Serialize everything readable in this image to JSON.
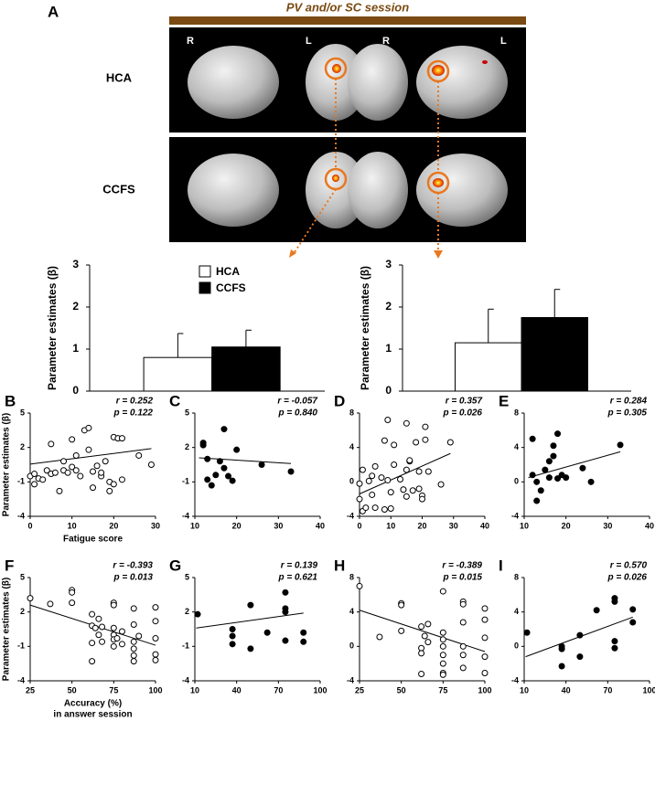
{
  "figure": {
    "panel_label": "A",
    "session_title": "PV and/or SC session",
    "rows": [
      "HCA",
      "CCFS"
    ],
    "hemispheres": [
      "R",
      "L",
      "R",
      "L"
    ]
  },
  "chart_data": [
    {
      "type": "bar",
      "ylabel": "Parameter estimates (β)",
      "ylim": [
        0,
        3
      ],
      "yticks": [
        0,
        1,
        2,
        3
      ],
      "legend": true,
      "series": [
        {
          "name": "HCA",
          "color": "#ffffff",
          "values": [
            0.8
          ],
          "errors": [
            0.57
          ]
        },
        {
          "name": "CCFS",
          "color": "#000000",
          "values": [
            1.05
          ],
          "errors": [
            0.4
          ]
        }
      ]
    },
    {
      "type": "bar",
      "ylabel": "Parameter estimates (β)",
      "ylim": [
        0,
        3
      ],
      "yticks": [
        0,
        1,
        2,
        3
      ],
      "legend": false,
      "series": [
        {
          "name": "HCA",
          "color": "#ffffff",
          "values": [
            1.15
          ],
          "errors": [
            0.8
          ]
        },
        {
          "name": "CCFS",
          "color": "#000000",
          "values": [
            1.75
          ],
          "errors": [
            0.67
          ]
        }
      ]
    },
    {
      "type": "scatter",
      "label": "B",
      "r_text": "r = 0.252",
      "p_text": "p = 0.122",
      "ylabel": "Parameter estimates (β)",
      "xlabel": [
        "Fatigue score"
      ],
      "marker": "open",
      "xlim": [
        0,
        30
      ],
      "xticks": [
        0,
        10,
        20,
        30
      ],
      "ylim": [
        -4,
        5
      ],
      "yticks": [
        -4,
        -1,
        2,
        5
      ],
      "x": [
        0,
        1,
        1,
        2,
        3,
        4,
        5,
        5,
        6,
        7,
        8,
        8,
        9,
        10,
        10,
        11,
        11,
        12,
        13,
        14,
        14,
        15,
        15,
        16,
        17,
        17,
        18,
        19,
        19,
        20,
        20,
        21,
        22,
        22,
        26,
        29
      ],
      "values": [
        -0.5,
        -1.2,
        -0.3,
        -0.7,
        -0.8,
        0,
        -0.3,
        2.3,
        -0.2,
        -1.8,
        0.8,
        0,
        -0.2,
        2.7,
        0.3,
        1.3,
        0,
        -0.5,
        3.5,
        3.7,
        1.8,
        -0.1,
        -1.5,
        0.4,
        -0.5,
        -0.2,
        0.8,
        -1,
        -1.8,
        -1.2,
        2.9,
        2.8,
        2.8,
        -0.8,
        1.3,
        0.5
      ],
      "trend_line": {
        "x": [
          0,
          29
        ],
        "y": [
          0.55,
          1.9
        ]
      }
    },
    {
      "type": "scatter",
      "label": "C",
      "r_text": "r = -0.057",
      "p_text": "p = 0.840",
      "marker": "filled",
      "xlim": [
        10,
        40
      ],
      "xticks": [
        10,
        20,
        30,
        40
      ],
      "ylim": [
        -4,
        5
      ],
      "yticks": [
        -4,
        -1,
        2,
        5
      ],
      "x": [
        12,
        12,
        13,
        13,
        14,
        15,
        16,
        17,
        17,
        18,
        19,
        20,
        26,
        33
      ],
      "values": [
        2.4,
        2.2,
        1.0,
        -0.8,
        -1.3,
        -0.4,
        0.8,
        3.6,
        0.2,
        -0.5,
        -0.9,
        1.8,
        0.5,
        -0.1
      ],
      "trend_line": {
        "x": [
          11,
          33
        ],
        "y": [
          1.1,
          0.6
        ]
      }
    },
    {
      "type": "scatter",
      "label": "D",
      "r_text": "r = 0.357",
      "p_text": "p = 0.026",
      "marker": "open",
      "xlim": [
        0,
        40
      ],
      "xticks": [
        0,
        10,
        20,
        30,
        40
      ],
      "ylim": [
        -4,
        8
      ],
      "yticks": [
        -4,
        0,
        4,
        8
      ],
      "x": [
        0,
        0,
        1,
        1,
        2,
        3,
        4,
        4,
        5,
        5,
        7,
        8,
        8,
        9,
        9,
        10,
        10,
        11,
        11,
        13,
        14,
        14,
        15,
        15,
        15,
        16,
        16,
        17,
        18,
        19,
        19,
        20,
        20,
        21,
        21,
        22,
        26,
        29
      ],
      "values": [
        -0.2,
        -2,
        1.4,
        -3.4,
        -3,
        0.1,
        -1.5,
        0.7,
        -3,
        1.8,
        0.5,
        -3.2,
        4.8,
        7.2,
        0.2,
        -3.1,
        -1.2,
        4.3,
        2,
        0.3,
        -0.9,
        -0.9,
        1.4,
        -1.7,
        6.8,
        2.4,
        2.5,
        -1,
        4.6,
        1.2,
        -0.8,
        -1.6,
        -2,
        4.9,
        6.4,
        1.2,
        -0.3,
        4.6
      ],
      "trend_line": {
        "x": [
          0,
          29
        ],
        "y": [
          -1.4,
          3.3
        ]
      }
    },
    {
      "type": "scatter",
      "label": "E",
      "r_text": "r = 0.284",
      "p_text": "p = 0.305",
      "marker": "filled",
      "xlim": [
        10,
        40
      ],
      "xticks": [
        10,
        20,
        30,
        40
      ],
      "ylim": [
        -4,
        8
      ],
      "yticks": [
        -4,
        0,
        4,
        8
      ],
      "x": [
        12,
        12,
        13,
        13,
        14,
        15,
        16,
        16,
        17,
        17,
        18,
        18,
        19,
        20,
        24,
        26,
        33
      ],
      "values": [
        0.8,
        5,
        -2.2,
        0,
        -1,
        1.4,
        2.4,
        0.5,
        4.2,
        3,
        5.6,
        0.4,
        0.8,
        0.5,
        1.6,
        0,
        4.3
      ],
      "trend_line": {
        "x": [
          11,
          33
        ],
        "y": [
          0.5,
          3.5
        ]
      }
    },
    {
      "type": "scatter",
      "label": "F",
      "r_text": "r = -0.393",
      "p_text": "p = 0.013",
      "ylabel": "Parameter estimates (β)",
      "xlabel": [
        "Accuracy (%)",
        "in answer session"
      ],
      "marker": "open",
      "xlim": [
        25,
        100
      ],
      "xticks": [
        25,
        50,
        75,
        100
      ],
      "ylim": [
        -4,
        5
      ],
      "yticks": [
        -4,
        -1,
        2,
        5
      ],
      "x": [
        25,
        37,
        50,
        50,
        50,
        62,
        62,
        62,
        62,
        64,
        66,
        66,
        68,
        68,
        75,
        75,
        75,
        75,
        75,
        75,
        77,
        80,
        80,
        87,
        87,
        87,
        87,
        87,
        87,
        90,
        100,
        100,
        100,
        100,
        100
      ],
      "values": [
        3.2,
        2.7,
        3.9,
        3.7,
        2.8,
        1.8,
        0.8,
        -0.7,
        -2.3,
        0.6,
        1.4,
        0,
        0.7,
        -0.6,
        2.8,
        2.6,
        0.6,
        0,
        -0.4,
        -1,
        -0.3,
        0.3,
        -0.8,
        2.3,
        0.9,
        -0.6,
        -1.2,
        -1.8,
        -2.3,
        -0.1,
        2.4,
        1.2,
        -0.3,
        -1.7,
        -2.2
      ],
      "trend_line": {
        "x": [
          25,
          100
        ],
        "y": [
          2.6,
          -0.9
        ]
      }
    },
    {
      "type": "scatter",
      "label": "G",
      "r_text": "r = 0.139",
      "p_text": "p = 0.621",
      "marker": "filled",
      "xlim": [
        10,
        100
      ],
      "xticks": [
        10,
        40,
        70,
        100
      ],
      "ylim": [
        -4,
        5
      ],
      "yticks": [
        -4,
        -1,
        2,
        5
      ],
      "x": [
        12,
        37,
        37,
        37,
        50,
        50,
        62,
        75,
        75,
        75,
        75,
        88,
        88
      ],
      "values": [
        1.8,
        0.5,
        -0.1,
        -0.8,
        2.6,
        -1.2,
        0.2,
        3.7,
        2.3,
        2.0,
        -0.5,
        0.2,
        -0.6
      ],
      "trend_line": {
        "x": [
          11,
          88
        ],
        "y": [
          0.6,
          1.9
        ]
      }
    },
    {
      "type": "scatter",
      "label": "H",
      "r_text": "r = -0.389",
      "p_text": "p = 0.015",
      "marker": "open",
      "xlim": [
        25,
        100
      ],
      "xticks": [
        25,
        50,
        75,
        100
      ],
      "ylim": [
        -4,
        8
      ],
      "yticks": [
        -4,
        0,
        4,
        8
      ],
      "x": [
        25,
        37,
        50,
        50,
        50,
        62,
        62,
        62,
        62,
        64,
        66,
        66,
        75,
        75,
        75,
        75,
        75,
        75,
        75,
        75,
        87,
        87,
        87,
        87,
        87,
        87,
        100,
        100,
        100,
        100,
        100
      ],
      "values": [
        7,
        1.1,
        5,
        4.8,
        1.8,
        2.3,
        -0.2,
        -0.8,
        -3.2,
        1.2,
        2.6,
        0.5,
        6.4,
        1.6,
        0.8,
        0,
        -1,
        -2,
        -3.1,
        -3.3,
        5.2,
        4.9,
        2.8,
        0,
        -1,
        -2.5,
        4.4,
        3.1,
        1,
        -1.2,
        -3.1
      ],
      "trend_line": {
        "x": [
          25,
          100
        ],
        "y": [
          4.2,
          -0.6
        ]
      }
    },
    {
      "type": "scatter",
      "label": "I",
      "r_text": "r = 0.570",
      "p_text": "p = 0.026",
      "marker": "filled",
      "xlim": [
        10,
        100
      ],
      "xticks": [
        10,
        40,
        70,
        100
      ],
      "ylim": [
        -4,
        8
      ],
      "yticks": [
        -4,
        0,
        4,
        8
      ],
      "x": [
        12,
        37,
        37,
        37,
        50,
        50,
        62,
        75,
        75,
        75,
        75,
        88,
        88
      ],
      "values": [
        1.6,
        0,
        -0.3,
        -2.3,
        1.3,
        -1.2,
        4.2,
        5.6,
        5.2,
        0.6,
        -0.2,
        4.3,
        2.8
      ],
      "trend_line": {
        "x": [
          11,
          88
        ],
        "y": [
          -1.2,
          3.4
        ]
      }
    }
  ]
}
